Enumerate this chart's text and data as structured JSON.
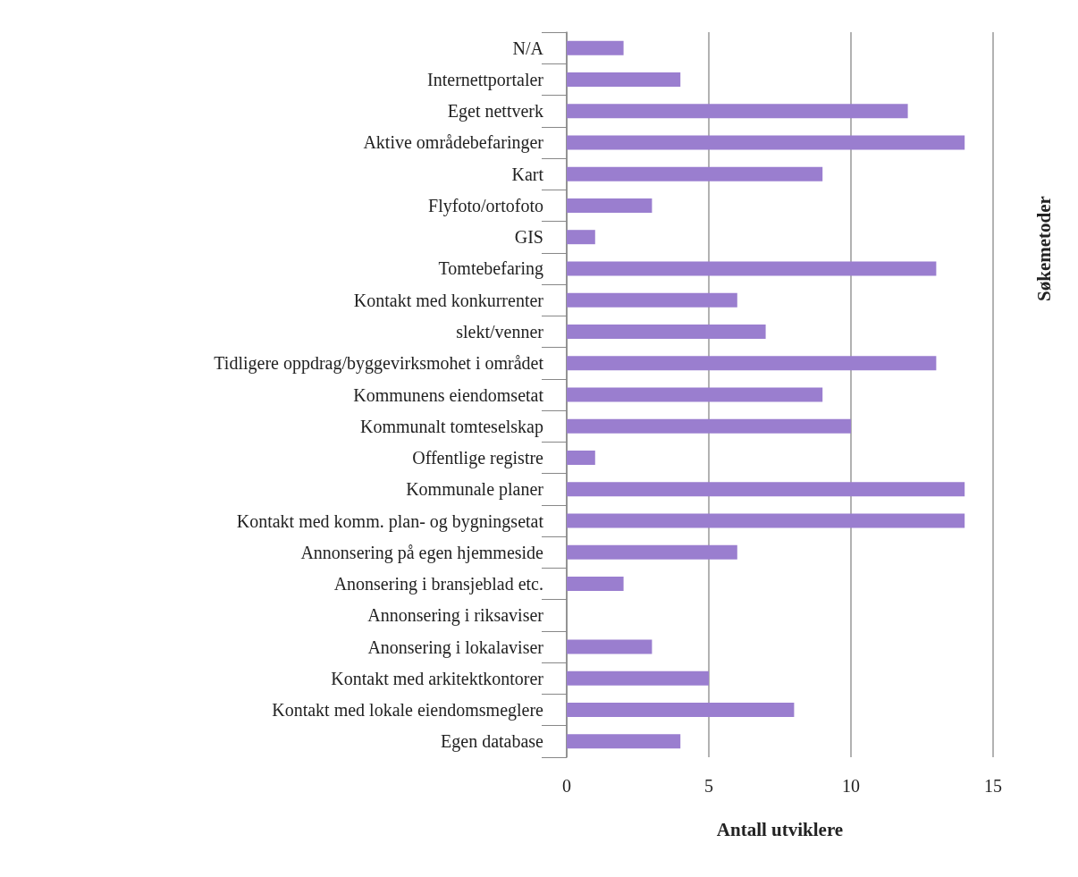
{
  "chart_data": {
    "type": "bar",
    "orientation": "horizontal",
    "xlabel": "Antall utviklere",
    "ylabel": "Søkemetoder",
    "categories": [
      "N/A",
      "Internettportaler",
      "Eget nettverk",
      "Aktive områdebefaringer",
      "Kart",
      "Flyfoto/ortofoto",
      "GIS",
      "Tomtebefaring",
      "Kontakt med konkurrenter",
      "slekt/venner",
      "Tidligere oppdrag/byggevirksmohet i området",
      "Kommunens eiendomsetat",
      "Kommunalt tomteselskap",
      "Offentlige registre",
      "Kommunale planer",
      "Kontakt med komm. plan- og bygningsetat",
      "Annonsering på egen hjemmeside",
      "Anonsering i bransjeblad etc.",
      "Annonsering i riksaviser",
      "Anonsering i lokalaviser",
      "Kontakt med arkitektkontorer",
      "Kontakt med lokale eiendomsmeglere",
      "Egen database"
    ],
    "values": [
      2,
      4,
      12,
      14,
      9,
      3,
      1,
      13,
      6,
      7,
      13,
      9,
      10,
      1,
      14,
      14,
      6,
      2,
      0,
      3,
      5,
      8,
      4
    ],
    "color": "#9a7ecf",
    "xlim": [
      0,
      15
    ],
    "xticks": [
      0,
      5,
      10,
      15
    ],
    "grid": "x"
  }
}
